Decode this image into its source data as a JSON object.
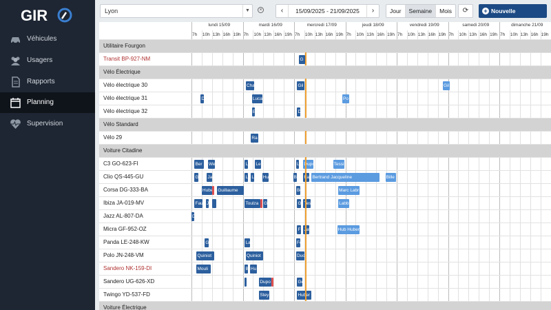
{
  "sidebar": {
    "logo": "GIR",
    "items": [
      {
        "label": "Véhicules",
        "icon": "car-icon"
      },
      {
        "label": "Usagers",
        "icon": "users-icon"
      },
      {
        "label": "Rapports",
        "icon": "document-icon"
      },
      {
        "label": "Planning",
        "icon": "calendar-icon",
        "active": true
      },
      {
        "label": "Supervision",
        "icon": "heartbeat-icon"
      }
    ]
  },
  "toolbar": {
    "city": "Lyon",
    "date_range": "15/09/2025 - 21/09/2025",
    "views": [
      "Jour",
      "Semaine",
      "Mois"
    ],
    "active_view": "Semaine",
    "new_reservation": "Nouvelle réservation"
  },
  "days": [
    "lundi 15/09",
    "mardi 16/09",
    "mercredi 17/09",
    "jeudi 18/09",
    "vendredi 19/09",
    "samedi 20/09",
    "dimanche 21/09"
  ],
  "hours": [
    "7h",
    "10h",
    "13h",
    "16h",
    "19h"
  ],
  "rows": [
    {
      "label": "Utilitaire Fourgon",
      "group": true
    },
    {
      "label": "Transit BP-927-NM",
      "warn": true,
      "events": [
        {
          "d": 2,
          "h": 0.2,
          "w": 0.6,
          "t": "G",
          "c": "dk"
        }
      ]
    },
    {
      "label": "Vélo Électrique",
      "group": true
    },
    {
      "label": "Vélo électrique 30",
      "events": [
        {
          "d": 1,
          "h": 0.0,
          "w": 0.8,
          "t": "Cha",
          "c": "dk"
        },
        {
          "d": 2,
          "h": 0.0,
          "w": 0.7,
          "t": "Gil",
          "c": "dk"
        },
        {
          "d": 5,
          "h": -0.8,
          "w": 0.7,
          "t": "Gil",
          "c": "lt"
        }
      ]
    },
    {
      "label": "Vélo électrique 31",
      "events": [
        {
          "d": 0,
          "h": 0.6,
          "w": 0.3,
          "t": "D",
          "c": "dk"
        },
        {
          "d": 1,
          "h": 0.6,
          "w": 1.0,
          "t": "Luca",
          "c": "dk"
        },
        {
          "d": 3,
          "h": -0.6,
          "w": 0.7,
          "t": "Po",
          "c": "lt"
        }
      ]
    },
    {
      "label": "Vélo électrique 32",
      "events": [
        {
          "d": 1,
          "h": 0.6,
          "w": 0.3,
          "t": "E",
          "c": "dk"
        },
        {
          "d": 2,
          "h": 0.0,
          "w": 0.3,
          "t": "D",
          "c": "dk"
        }
      ]
    },
    {
      "label": "Vélo Standard",
      "group": true
    },
    {
      "label": "Vélo 29",
      "events": [
        {
          "d": 1,
          "h": 0.5,
          "w": 0.7,
          "t": "Ra",
          "c": "dk"
        }
      ]
    },
    {
      "label": "Voiture Citadine",
      "group": true
    },
    {
      "label": "C3 GO-623-FI",
      "events": [
        {
          "d": 0,
          "h": 0.0,
          "w": 0.9,
          "t": "Ber",
          "c": "dk"
        },
        {
          "d": 0,
          "h": 1.3,
          "w": 0.7,
          "t": "We",
          "c": "dk"
        },
        {
          "d": 1,
          "h": -0.1,
          "w": 0.3,
          "t": "L",
          "c": "dk"
        },
        {
          "d": 1,
          "h": 0.9,
          "w": 0.6,
          "t": "Le",
          "c": "dk"
        },
        {
          "d": 1,
          "h": 4.9,
          "w": 0.3,
          "t": "L",
          "c": "dk"
        },
        {
          "d": 2,
          "h": 0.6,
          "w": 1.0,
          "t": "Dupo",
          "c": "lt"
        },
        {
          "d": 2,
          "h": 3.5,
          "w": 1.1,
          "t": "Tessi",
          "c": "lt"
        }
      ]
    },
    {
      "label": "Clio QS-445-GU",
      "events": [
        {
          "d": 0,
          "h": 0.0,
          "w": 0.4,
          "t": "G",
          "c": "dk"
        },
        {
          "d": 0,
          "h": 1.2,
          "w": 0.5,
          "t": "Ja",
          "c": "dk"
        },
        {
          "d": 1,
          "h": -0.1,
          "w": 0.3,
          "t": "L",
          "c": "dk"
        },
        {
          "d": 1,
          "h": 0.5,
          "w": 0.3,
          "t": "L",
          "c": "dk"
        },
        {
          "d": 1,
          "h": 1.6,
          "w": 0.6,
          "t": "Hu",
          "c": "dk"
        },
        {
          "d": 2,
          "h": -0.4,
          "w": 0.4,
          "t": "B",
          "c": "dk"
        },
        {
          "d": 2,
          "h": 0.6,
          "w": 0.6,
          "t": "Fa",
          "c": "dk"
        },
        {
          "d": 2,
          "h": 1.4,
          "w": 6.6,
          "t": "Bertrand Jacqueline",
          "c": "lt"
        },
        {
          "d": 3,
          "h": 3.6,
          "w": 1.0,
          "t": "Bille",
          "c": "lt"
        }
      ]
    },
    {
      "label": "Corsa DG-333-BA",
      "events": [
        {
          "d": 0,
          "h": 0.7,
          "w": 1.0,
          "t": "Hube",
          "c": "dk"
        },
        {
          "d": 0,
          "h": 1.7,
          "w": 0.2,
          "t": "",
          "c": "rd"
        },
        {
          "d": 0,
          "h": 2.2,
          "w": 2.6,
          "t": "Guillaume",
          "c": "dk"
        },
        {
          "d": 1,
          "h": 4.9,
          "w": 0.4,
          "t": "Be",
          "c": "dk"
        },
        {
          "d": 2,
          "h": 4.0,
          "w": 2.1,
          "t": "Marc Labr",
          "c": "lt"
        }
      ]
    },
    {
      "label": "Ibiza JA-019-MV",
      "events": [
        {
          "d": 0,
          "h": 0.0,
          "w": 0.8,
          "t": "Fau",
          "c": "dk"
        },
        {
          "d": 0,
          "h": 1.1,
          "w": 0.3,
          "t": "J",
          "c": "dk"
        },
        {
          "d": 0,
          "h": 1.7,
          "w": 0.4,
          "t": "",
          "c": "dk"
        },
        {
          "d": 1,
          "h": -0.1,
          "w": 1.5,
          "t": "Toulza",
          "c": "dk"
        },
        {
          "d": 1,
          "h": 1.4,
          "w": 0.2,
          "t": "",
          "c": "rd"
        },
        {
          "d": 1,
          "h": 1.7,
          "w": 0.4,
          "t": "G",
          "c": "dk"
        },
        {
          "d": 1,
          "h": 5.0,
          "w": 0.4,
          "t": "G",
          "c": "dk"
        },
        {
          "d": 2,
          "h": 0.6,
          "w": 0.7,
          "t": "Tes",
          "c": "dk"
        },
        {
          "d": 2,
          "h": 4.0,
          "w": 1.1,
          "t": "Labb",
          "c": "lt"
        }
      ]
    },
    {
      "label": "Jazz AL-807-DA",
      "events": [
        {
          "d": 0,
          "h": -0.3,
          "w": 0.3,
          "t": "D",
          "c": "dk"
        }
      ]
    },
    {
      "label": "Micra GF-952-OZ",
      "events": [
        {
          "d": 1,
          "h": 5.0,
          "w": 0.4,
          "t": "F",
          "c": "dk"
        },
        {
          "d": 2,
          "h": 0.6,
          "w": 0.6,
          "t": "Jat",
          "c": "dk"
        },
        {
          "d": 2,
          "h": 3.9,
          "w": 2.2,
          "t": "Hub Hubert",
          "c": "lt"
        }
      ]
    },
    {
      "label": "Panda LE-248-KW",
      "events": [
        {
          "d": 0,
          "h": 1.0,
          "w": 0.4,
          "t": "G",
          "c": "dk"
        },
        {
          "d": 1,
          "h": -0.1,
          "w": 0.5,
          "t": "La",
          "c": "dk"
        },
        {
          "d": 1,
          "h": 4.9,
          "w": 0.4,
          "t": "Fo",
          "c": "dk"
        }
      ]
    },
    {
      "label": "Polo JN-248-VM",
      "events": [
        {
          "d": 0,
          "h": 0.2,
          "w": 1.7,
          "t": "Quiniot",
          "c": "dk"
        },
        {
          "d": 1,
          "h": 0.0,
          "w": 1.7,
          "t": "Quiniot",
          "c": "dk"
        },
        {
          "d": 1,
          "h": 4.9,
          "w": 0.8,
          "t": "Duc",
          "c": "dk"
        }
      ]
    },
    {
      "label": "Sandero NK-159-DI",
      "warn": true,
      "events": [
        {
          "d": 0,
          "h": 0.2,
          "w": 1.4,
          "t": "Mouli",
          "c": "dk"
        },
        {
          "d": 1,
          "h": -0.1,
          "w": 0.3,
          "t": "B",
          "c": "dk"
        },
        {
          "d": 1,
          "h": 0.4,
          "w": 0.7,
          "t": "Hu",
          "c": "dk"
        }
      ]
    },
    {
      "label": "Sandero UG-626-XD",
      "events": [
        {
          "d": 1,
          "h": -0.1,
          "w": 0.2,
          "t": "",
          "c": "dk"
        },
        {
          "d": 1,
          "h": 1.3,
          "w": 1.2,
          "t": "Dupo",
          "c": "dk"
        },
        {
          "d": 1,
          "h": 2.5,
          "w": 0.2,
          "t": "",
          "c": "rd"
        },
        {
          "d": 1,
          "h": 5.0,
          "w": 0.5,
          "t": "Ge",
          "c": "dk"
        }
      ]
    },
    {
      "label": "Twingo YD-537-FD",
      "events": [
        {
          "d": 1,
          "h": 1.3,
          "w": 1.0,
          "t": "Stey",
          "c": "dk"
        },
        {
          "d": 1,
          "h": 5.0,
          "w": 1.4,
          "t": "Huber",
          "c": "dk"
        }
      ]
    },
    {
      "label": "Voiture Électrique",
      "group": true
    }
  ],
  "now_marker": "mercredi 17/09"
}
